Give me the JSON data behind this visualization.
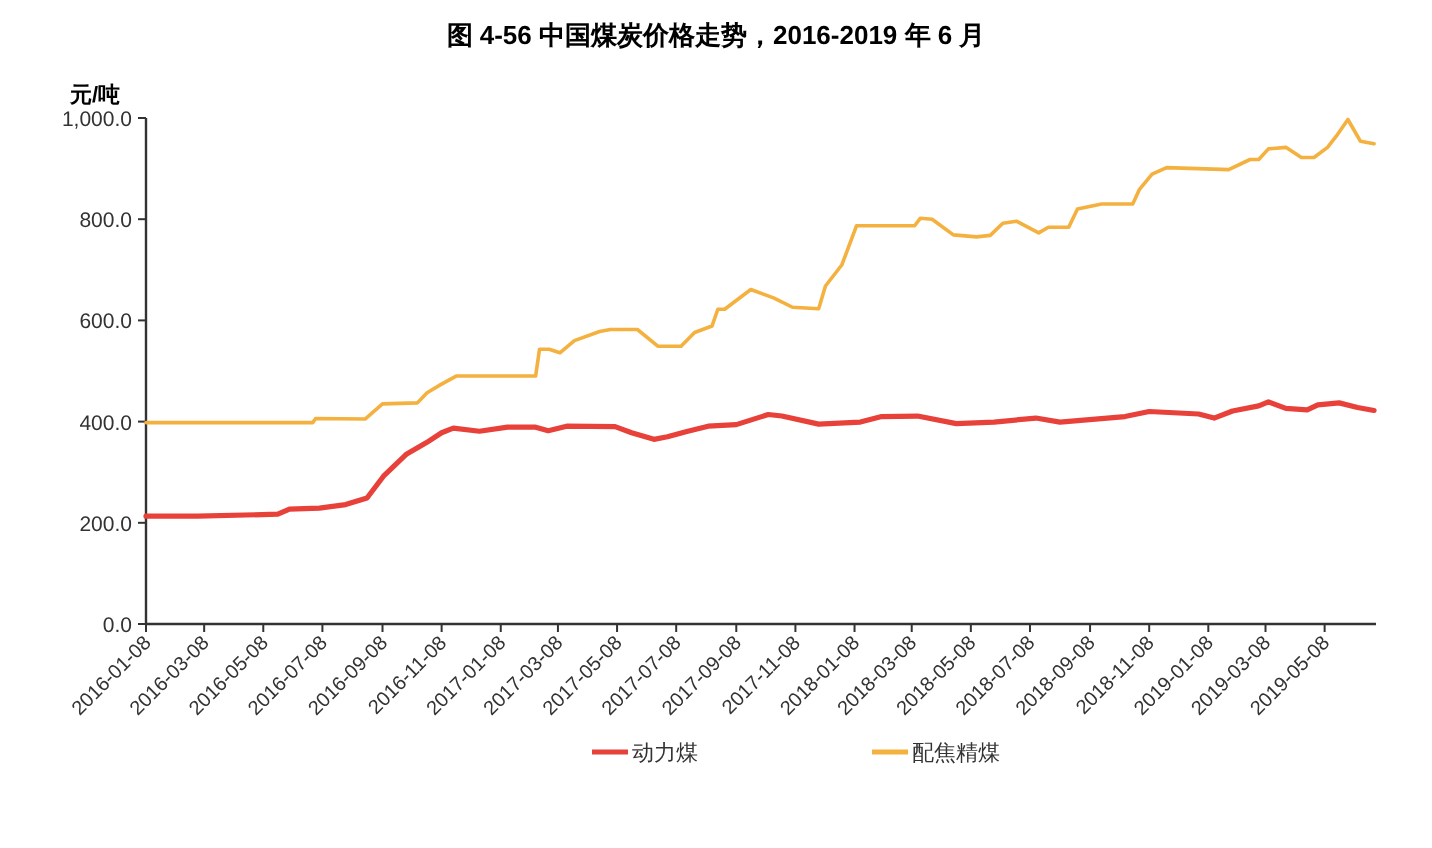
{
  "chart_data": {
    "type": "line",
    "title": "图 4-56  中国煤炭价格走势，2016-2019 年 6 月",
    "ylabel": "元/吨",
    "xlim": [
      "2016-01-08",
      "2019-06-30"
    ],
    "ylim": [
      0,
      1000
    ],
    "xticks": [
      "2016-01-08",
      "2016-03-08",
      "2016-05-08",
      "2016-07-08",
      "2016-09-08",
      "2016-11-08",
      "2017-01-08",
      "2017-03-08",
      "2017-05-08",
      "2017-07-08",
      "2017-09-08",
      "2017-11-08",
      "2018-01-08",
      "2018-03-08",
      "2018-05-08",
      "2018-07-08",
      "2018-09-08",
      "2018-11-08",
      "2019-01-08",
      "2019-03-08",
      "2019-05-08"
    ],
    "yticks": [
      {
        "value": 0,
        "label": "0.0"
      },
      {
        "value": 200,
        "label": "200.0"
      },
      {
        "value": 400,
        "label": "400.0"
      },
      {
        "value": 600,
        "label": "600.0"
      },
      {
        "value": 800,
        "label": "800.0"
      },
      {
        "value": 1000,
        "label": "1,000.0"
      }
    ],
    "legend": "bottom",
    "series": [
      {
        "name": "动力煤",
        "color": "#e8413a",
        "x": [
          "2016-01-08",
          "2016-03-01",
          "2016-05-23",
          "2016-06-04",
          "2016-07-05",
          "2016-08-01",
          "2016-08-23",
          "2016-09-09",
          "2016-10-03",
          "2016-10-23",
          "2016-11-08",
          "2016-11-20",
          "2016-12-17",
          "2017-01-15",
          "2017-02-13",
          "2017-02-26",
          "2017-03-17",
          "2017-05-06",
          "2017-05-23",
          "2017-06-15",
          "2017-06-29",
          "2017-07-20",
          "2017-08-10",
          "2017-09-08",
          "2017-10-11",
          "2017-10-25",
          "2017-12-02",
          "2018-01-14",
          "2018-02-05",
          "2018-03-14",
          "2018-04-23",
          "2018-06-01",
          "2018-07-14",
          "2018-08-08",
          "2018-10-14",
          "2018-11-08",
          "2018-12-29",
          "2019-01-14",
          "2019-02-02",
          "2019-03-01",
          "2019-03-11",
          "2019-03-29",
          "2019-04-20",
          "2019-05-01",
          "2019-05-23",
          "2019-06-11",
          "2019-06-28"
        ],
        "values": [
          213,
          213,
          217,
          227,
          229,
          236,
          249,
          292,
          336,
          358,
          378,
          387,
          381,
          389,
          389,
          382,
          391,
          390,
          378,
          365,
          370,
          381,
          391,
          394,
          414,
          411,
          395,
          399,
          410,
          411,
          396,
          399,
          407,
          399,
          410,
          420,
          415,
          407,
          421,
          431,
          439,
          426,
          423,
          433,
          437,
          428,
          422
        ]
      },
      {
        "name": "配焦精煤",
        "color": "#f4b13f",
        "x": [
          "2016-01-08",
          "2016-06-28",
          "2016-07-01",
          "2016-08-21",
          "2016-09-08",
          "2016-10-14",
          "2016-10-24",
          "2016-11-07",
          "2016-11-23",
          "2017-02-13",
          "2017-02-17",
          "2017-02-27",
          "2017-03-10",
          "2017-03-25",
          "2017-04-20",
          "2017-05-01",
          "2017-05-29",
          "2017-06-19",
          "2017-07-13",
          "2017-07-27",
          "2017-08-14",
          "2017-08-20",
          "2017-08-27",
          "2017-09-23",
          "2017-10-17",
          "2017-11-05",
          "2017-12-02",
          "2017-12-09",
          "2017-12-26",
          "2018-01-10",
          "2018-03-11",
          "2018-03-17",
          "2018-03-29",
          "2018-04-20",
          "2018-05-14",
          "2018-05-28",
          "2018-06-10",
          "2018-06-24",
          "2018-07-17",
          "2018-07-27",
          "2018-08-17",
          "2018-08-26",
          "2018-09-20",
          "2018-10-22",
          "2018-10-29",
          "2018-11-11",
          "2018-11-26",
          "2019-01-29",
          "2019-02-20",
          "2019-03-01",
          "2019-03-11",
          "2019-03-29",
          "2019-04-14",
          "2019-04-27",
          "2019-05-11",
          "2019-05-20",
          "2019-06-01",
          "2019-06-14",
          "2019-06-28"
        ],
        "values": [
          398,
          398,
          406,
          405,
          435,
          437,
          457,
          473,
          490,
          490,
          543,
          543,
          536,
          560,
          578,
          582,
          582,
          549,
          549,
          576,
          589,
          622,
          622,
          661,
          644,
          626,
          623,
          668,
          710,
          787,
          787,
          802,
          800,
          769,
          765,
          768,
          792,
          796,
          773,
          784,
          784,
          820,
          830,
          830,
          859,
          889,
          902,
          898,
          918,
          918,
          939,
          942,
          922,
          922,
          942,
          964,
          997,
          954,
          949
        ]
      }
    ]
  }
}
